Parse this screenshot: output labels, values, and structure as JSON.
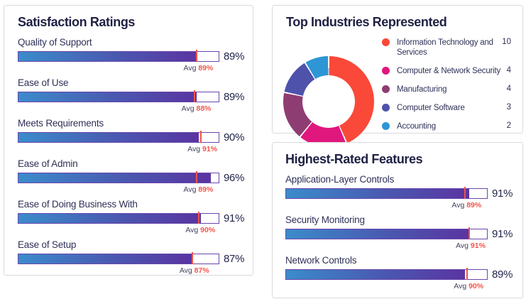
{
  "strings": {
    "avg_prefix": "Avg"
  },
  "theme": {
    "panel_border": "#dadade",
    "title_color": "#1f2144",
    "bar_gradient": [
      "#3b8ccb",
      "#4a58b0",
      "#5a34a1"
    ],
    "bar_track_border": "#6a46ae",
    "avg_tick_color": "#f0544b",
    "avg_value_color": "#f2554b"
  },
  "chart_data": [
    {
      "type": "bar",
      "orientation": "horizontal",
      "title": "Satisfaction Ratings",
      "unit": "%",
      "xlim": [
        0,
        100
      ],
      "categories": [
        "Quality of Support",
        "Ease of Use",
        "Meets Requirements",
        "Ease of Admin",
        "Ease of Doing Business With",
        "Ease of Setup"
      ],
      "values": [
        89,
        89,
        90,
        96,
        91,
        87
      ],
      "averages": [
        89,
        88,
        91,
        89,
        90,
        87
      ]
    },
    {
      "type": "pie",
      "subtype": "donut",
      "title": "Top Industries Represented",
      "legend_position": "right",
      "labels": [
        "Information Technology and Services",
        "Computer & Network Security",
        "Manufacturing",
        "Computer Software",
        "Accounting"
      ],
      "values": [
        10,
        4,
        4,
        3,
        2
      ],
      "colors": [
        "#fa4839",
        "#e0187e",
        "#8e3d72",
        "#4e52ab",
        "#2e96d5"
      ]
    },
    {
      "type": "bar",
      "orientation": "horizontal",
      "title": "Highest-Rated Features",
      "unit": "%",
      "xlim": [
        0,
        100
      ],
      "categories": [
        "Application-Layer Controls",
        "Security Monitoring",
        "Network Controls"
      ],
      "values": [
        91,
        91,
        89
      ],
      "averages": [
        89,
        91,
        90
      ]
    }
  ]
}
